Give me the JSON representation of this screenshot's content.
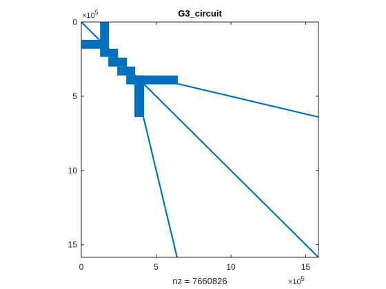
{
  "chart_data": {
    "type": "scatter",
    "subtype": "sparsity-pattern",
    "title": "G3_circuit",
    "xlabel": "nz = 7660826",
    "ylabel": "",
    "x_exponent_prefix": "×10",
    "x_exponent_power": "5",
    "y_exponent_prefix": "×10",
    "y_exponent_power": "5",
    "xlim": [
      0,
      15.85
    ],
    "ylim": [
      0,
      15.85
    ],
    "y_reversed": true,
    "grid": false,
    "x_ticks": [
      {
        "value": 0,
        "label": "0"
      },
      {
        "value": 5,
        "label": "5"
      },
      {
        "value": 10,
        "label": "10"
      },
      {
        "value": 15,
        "label": "15"
      }
    ],
    "y_ticks": [
      {
        "value": 0,
        "label": "0"
      },
      {
        "value": 5,
        "label": "5"
      },
      {
        "value": 10,
        "label": "10"
      },
      {
        "value": 15,
        "label": "15"
      }
    ],
    "marker_color": "#0072BD",
    "diagonal": [
      0,
      15.85
    ],
    "blocks": [
      {
        "x": [
          1.25,
          1.85
        ],
        "y": [
          0,
          2.35
        ]
      },
      {
        "x": [
          0,
          1.85
        ],
        "y": [
          1.2,
          1.8
        ]
      },
      {
        "x": [
          1.8,
          2.45
        ],
        "y": [
          1.8,
          2.4
        ]
      },
      {
        "x": [
          2.4,
          3.05
        ],
        "y": [
          2.4,
          3.0
        ]
      },
      {
        "x": [
          1.8,
          2.45
        ],
        "y": [
          2.4,
          3.0
        ]
      },
      {
        "x": [
          3.0,
          3.6
        ],
        "y": [
          3.0,
          3.6
        ]
      },
      {
        "x": [
          2.4,
          3.05
        ],
        "y": [
          3.0,
          3.6
        ]
      },
      {
        "x": [
          3.55,
          4.2
        ],
        "y": [
          3.6,
          4.2
        ]
      },
      {
        "x": [
          3.0,
          3.6
        ],
        "y": [
          3.6,
          4.2
        ]
      },
      {
        "x": [
          3.55,
          6.45
        ],
        "y": [
          3.6,
          4.2
        ]
      },
      {
        "x": [
          3.55,
          4.2
        ],
        "y": [
          3.6,
          6.4
        ]
      }
    ],
    "off_diagonal_lines": [
      {
        "from": [
          6.4,
          4.15
        ],
        "to": [
          15.85,
          6.4
        ]
      },
      {
        "from": [
          4.15,
          6.4
        ],
        "to": [
          6.4,
          15.85
        ]
      }
    ]
  }
}
